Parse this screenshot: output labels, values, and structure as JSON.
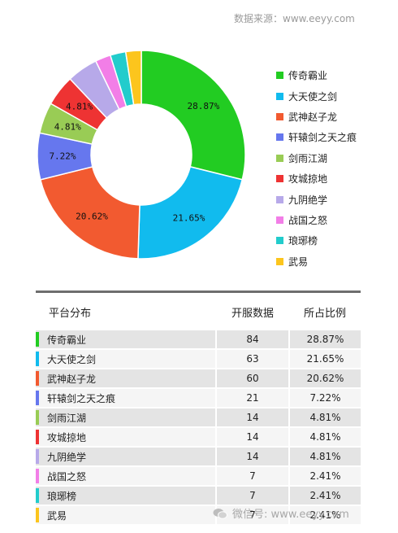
{
  "source": "数据来源：www.eeyy.com",
  "watermark": "微信号: www.eeyy.com",
  "chart_data": {
    "type": "pie",
    "variant": "donut",
    "categories": [
      "传奇霸业",
      "大天使之剑",
      "武神赵子龙",
      "轩辕剑之天之痕",
      "剑雨江湖",
      "攻城掠地",
      "九阴绝学",
      "战国之怒",
      "琅琊榜",
      "武易"
    ],
    "values": [
      28.87,
      21.65,
      20.62,
      7.22,
      4.81,
      4.81,
      4.81,
      2.41,
      2.41,
      2.41
    ],
    "slice_labels": [
      "28.87%",
      "21.65%",
      "20.62%",
      "7.22%",
      "4.81%",
      "4.81%",
      "",
      "",
      "",
      ""
    ],
    "colors": [
      "#22cc22",
      "#11bbee",
      "#f25a30",
      "#6677ee",
      "#99cc55",
      "#ee3333",
      "#b7a9e9",
      "#f27ee7",
      "#22cccc",
      "#fcc51d"
    ],
    "legend_position": "right"
  },
  "table": {
    "headers": [
      "平台分布",
      "开服数据",
      "所占比例"
    ],
    "rows": [
      {
        "name": "传奇霸业",
        "count": "84",
        "pct": "28.87%"
      },
      {
        "name": "大天使之剑",
        "count": "63",
        "pct": "21.65%"
      },
      {
        "name": "武神赵子龙",
        "count": "60",
        "pct": "20.62%"
      },
      {
        "name": "轩辕剑之天之痕",
        "count": "21",
        "pct": "7.22%"
      },
      {
        "name": "剑雨江湖",
        "count": "14",
        "pct": "4.81%"
      },
      {
        "name": "攻城掠地",
        "count": "14",
        "pct": "4.81%"
      },
      {
        "name": "九阴绝学",
        "count": "14",
        "pct": "4.81%"
      },
      {
        "name": "战国之怒",
        "count": "7",
        "pct": "2.41%"
      },
      {
        "name": "琅琊榜",
        "count": "7",
        "pct": "2.41%"
      },
      {
        "name": "武易",
        "count": "7",
        "pct": "2.41%"
      }
    ]
  }
}
